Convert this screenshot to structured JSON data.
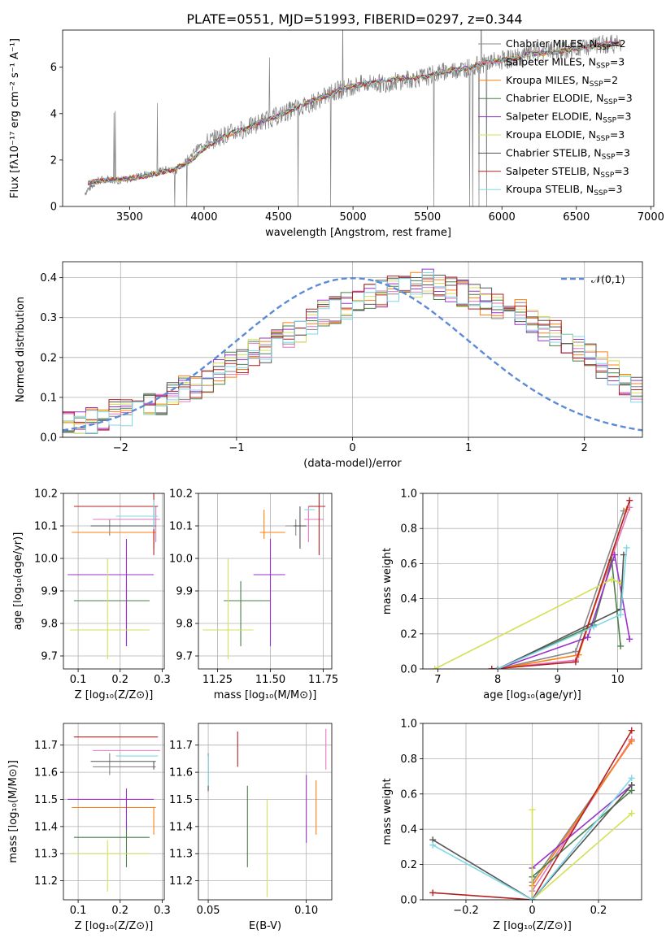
{
  "figure_title": "PLATE=0551, MJD=51993, FIBERID=0297, z=0.344",
  "series_colors": [
    "#888888",
    "#e377c2",
    "#ff7f0e",
    "#4b7f4b",
    "#9932cc",
    "#d4e157",
    "#555555",
    "#b22222",
    "#7fd8e6"
  ],
  "chart_data": [
    {
      "panel": "spectrum",
      "type": "line",
      "title": "PLATE=0551, MJD=51993, FIBERID=0297, z=0.344",
      "xlabel": "wavelength [Angstrom, rest frame]",
      "ylabel": "Flux [fλ10⁻¹⁷ erg cm⁻² s⁻¹ A⁻¹]",
      "xlim": [
        3050,
        7020
      ],
      "ylim": [
        0,
        7.6
      ],
      "xticks": [
        3500,
        4000,
        4500,
        5000,
        5500,
        6000,
        6500,
        7000
      ],
      "yticks": [
        0,
        2,
        4,
        6
      ],
      "grid": false,
      "legend_position": "upper right",
      "legend": [
        {
          "text": "Chabrier MILES, N",
          "sub": "SSP",
          "tail": "=2"
        },
        {
          "text": "Salpeter MILES, N",
          "sub": "SSP",
          "tail": "=3"
        },
        {
          "text": "Kroupa MILES, N",
          "sub": "SSP",
          "tail": "=2"
        },
        {
          "text": "Chabrier ELODIE, N",
          "sub": "SSP",
          "tail": "=3"
        },
        {
          "text": "Salpeter ELODIE, N",
          "sub": "SSP",
          "tail": "=3"
        },
        {
          "text": "Kroupa ELODIE, N",
          "sub": "SSP",
          "tail": "=3"
        },
        {
          "text": "Chabrier STELIB, N",
          "sub": "SSP",
          "tail": "=3"
        },
        {
          "text": "Salpeter STELIB, N",
          "sub": "SSP",
          "tail": "=3"
        },
        {
          "text": "Kroupa STELIB, N",
          "sub": "SSP",
          "tail": "=3"
        }
      ],
      "observed_flux": {
        "x": [
          3200,
          3280,
          3350,
          3450,
          3500,
          3550,
          3650,
          3750,
          3800,
          3850,
          3900,
          3950,
          4000,
          4100,
          4200,
          4300,
          4400,
          4500,
          4600,
          4700,
          4800,
          4900,
          5000,
          5100,
          5200,
          5300,
          5400,
          5500,
          5600,
          5700,
          5800,
          5900,
          6000,
          6100,
          6200,
          6300,
          6400,
          6500,
          6600,
          6700,
          6800
        ],
        "y": [
          0.6,
          1.1,
          1.2,
          1.1,
          1.2,
          1.3,
          1.4,
          1.6,
          1.5,
          1.8,
          2.1,
          2.5,
          2.7,
          3.0,
          3.2,
          3.4,
          3.7,
          3.9,
          4.2,
          4.4,
          4.7,
          5.0,
          5.2,
          5.3,
          5.3,
          5.4,
          5.5,
          5.6,
          5.8,
          5.9,
          6.0,
          6.2,
          6.3,
          6.4,
          6.6,
          6.7,
          6.7,
          6.8,
          6.9,
          7.0,
          7.0
        ]
      },
      "model_flux": {
        "x": [
          3200,
          3300,
          3400,
          3500,
          3600,
          3700,
          3800,
          3900,
          4000,
          4100,
          4200,
          4300,
          4400,
          4500,
          4600,
          4700,
          4800,
          4900,
          5000,
          5100,
          5200,
          5300,
          5400,
          5500,
          5600,
          5700,
          5800,
          5900,
          6000,
          6100,
          6200,
          6300,
          6400,
          6500,
          6600,
          6700,
          6800
        ],
        "y": [
          1.0,
          1.1,
          1.15,
          1.2,
          1.3,
          1.45,
          1.6,
          1.9,
          2.5,
          2.9,
          3.2,
          3.4,
          3.7,
          3.9,
          4.2,
          4.5,
          4.7,
          5.0,
          5.2,
          5.3,
          5.4,
          5.5,
          5.5,
          5.6,
          5.8,
          5.9,
          6.0,
          6.2,
          6.3,
          6.4,
          6.6,
          6.6,
          6.7,
          6.8,
          6.9,
          7.0,
          7.0
        ]
      }
    },
    {
      "panel": "residuals",
      "type": "histogram",
      "xlabel": "(data-model)/error",
      "ylabel": "Normed distribution",
      "xlim": [
        -2.5,
        2.5
      ],
      "ylim": [
        0,
        0.44
      ],
      "xticks": [
        -2,
        -1,
        0,
        1,
        2
      ],
      "yticks": [
        0.0,
        0.1,
        0.2,
        0.3,
        0.4
      ],
      "grid": true,
      "legend_position": "upper right",
      "reference_curve": {
        "name": "𝒩(0,1)",
        "mean": 0,
        "sigma": 1
      },
      "bin_width": 0.1,
      "base_histogram": [
        0.03,
        0.03,
        0.04,
        0.05,
        0.06,
        0.06,
        0.07,
        0.08,
        0.09,
        0.11,
        0.12,
        0.13,
        0.14,
        0.16,
        0.18,
        0.19,
        0.21,
        0.22,
        0.24,
        0.26,
        0.27,
        0.29,
        0.31,
        0.32,
        0.33,
        0.34,
        0.35,
        0.36,
        0.37,
        0.38,
        0.38,
        0.39,
        0.38,
        0.37,
        0.36,
        0.35,
        0.34,
        0.33,
        0.32,
        0.31,
        0.29,
        0.27,
        0.26,
        0.24,
        0.22,
        0.2,
        0.18,
        0.16,
        0.14,
        0.12
      ]
    },
    {
      "panel": "age_vs_Z",
      "type": "errorbar",
      "xlabel": "Z [log₁₀(Z/Z⊙)]",
      "ylabel": "age  [log₁₀(age/yr)]",
      "xlim": [
        0.065,
        0.305
      ],
      "ylim": [
        9.66,
        10.2
      ],
      "xticks": [
        0.1,
        0.2,
        0.3
      ],
      "yticks": [
        9.7,
        9.8,
        9.9,
        10.0,
        10.1,
        10.2
      ],
      "grid": true,
      "points": [
        {
          "x": 0.175,
          "y": 10.1,
          "xerr": [
            0.04,
            0.11
          ],
          "yerr": [
            0.03,
            0.02
          ]
        },
        {
          "x": 0.285,
          "y": 10.12,
          "xerr": [
            0.15,
            0.01
          ],
          "yerr": [
            0.07,
            0.04
          ]
        },
        {
          "x": 0.28,
          "y": 10.08,
          "xerr": [
            0.195,
            0.005
          ],
          "yerr": [
            0.02,
            0.07
          ]
        },
        {
          "x": 0.215,
          "y": 9.87,
          "xerr": [
            0.125,
            0.055
          ],
          "yerr": [
            0.14,
            0.06
          ]
        },
        {
          "x": 0.215,
          "y": 9.95,
          "xerr": [
            0.14,
            0.065
          ],
          "yerr": [
            0.22,
            0.11
          ]
        },
        {
          "x": 0.17,
          "y": 9.78,
          "xerr": [
            0.09,
            0.1
          ],
          "yerr": [
            0.09,
            0.22
          ]
        },
        {
          "x": 0.28,
          "y": 10.1,
          "xerr": [
            0.15,
            0.005
          ],
          "yerr": [
            0.07,
            0.06
          ]
        },
        {
          "x": 0.28,
          "y": 10.16,
          "xerr": [
            0.19,
            0.01
          ],
          "yerr": [
            0.15,
            0.04
          ]
        },
        {
          "x": 0.28,
          "y": 10.13,
          "xerr": [
            0.09,
            0.01
          ],
          "yerr": [
            0.04,
            0.05
          ]
        }
      ]
    },
    {
      "panel": "age_vs_mass",
      "type": "errorbar",
      "xlabel": "mass [log₁₀(M/M⊙)]",
      "ylabel": "",
      "xlim": [
        11.16,
        11.79
      ],
      "ylim": [
        9.66,
        10.2
      ],
      "xticks": [
        11.25,
        11.5,
        11.75
      ],
      "yticks": [
        9.7,
        9.8,
        9.9,
        10.0,
        10.1,
        10.2
      ],
      "grid": true,
      "points": [
        {
          "x": 11.62,
          "y": 10.1,
          "xerr": [
            0.05,
            0.03
          ],
          "yerr": [
            0.03,
            0.02
          ]
        },
        {
          "x": 11.68,
          "y": 10.12,
          "xerr": [
            0.02,
            0.07
          ],
          "yerr": [
            0.07,
            0.04
          ]
        },
        {
          "x": 11.47,
          "y": 10.08,
          "xerr": [
            0.02,
            0.1
          ],
          "yerr": [
            0.02,
            0.07
          ]
        },
        {
          "x": 11.36,
          "y": 9.87,
          "xerr": [
            0.08,
            0.14
          ],
          "yerr": [
            0.14,
            0.06
          ]
        },
        {
          "x": 11.5,
          "y": 9.95,
          "xerr": [
            0.08,
            0.07
          ],
          "yerr": [
            0.22,
            0.11
          ]
        },
        {
          "x": 11.3,
          "y": 9.78,
          "xerr": [
            0.12,
            0.12
          ],
          "yerr": [
            0.09,
            0.22
          ]
        },
        {
          "x": 11.64,
          "y": 10.1,
          "xerr": [
            0.03,
            0.03
          ],
          "yerr": [
            0.07,
            0.06
          ]
        },
        {
          "x": 11.73,
          "y": 10.16,
          "xerr": [
            0.05,
            0.03
          ],
          "yerr": [
            0.15,
            0.04
          ]
        },
        {
          "x": 11.66,
          "y": 10.15,
          "xerr": [
            0.0,
            0.05
          ],
          "yerr": [
            0.0,
            0.0
          ]
        }
      ]
    },
    {
      "panel": "weight_vs_age",
      "type": "line",
      "xlabel": "age  [log₁₀(age/yr)]",
      "ylabel": "mass weight",
      "xlim": [
        6.75,
        10.4
      ],
      "ylim": [
        0,
        1.0
      ],
      "xticks": [
        7,
        8,
        9,
        10
      ],
      "yticks": [
        0.0,
        0.2,
        0.4,
        0.6,
        0.8,
        1.0
      ],
      "grid": true,
      "series": [
        {
          "x": [
            8.0,
            9.3,
            10.1
          ],
          "y": [
            0.0,
            0.1,
            0.9
          ]
        },
        {
          "x": [
            7.9,
            9.3,
            10.2
          ],
          "y": [
            0.0,
            0.05,
            0.92
          ]
        },
        {
          "x": [
            8.0,
            9.35,
            10.15
          ],
          "y": [
            0.0,
            0.08,
            0.91
          ]
        },
        {
          "x": [
            8.0,
            9.6,
            9.9,
            10.05
          ],
          "y": [
            0.0,
            0.25,
            0.62,
            0.13
          ]
        },
        {
          "x": [
            8.0,
            9.5,
            9.95,
            10.2
          ],
          "y": [
            0.0,
            0.18,
            0.65,
            0.17
          ]
        },
        {
          "x": [
            6.95,
            9.9,
            10.05
          ],
          "y": [
            0.0,
            0.51,
            0.49
          ]
        },
        {
          "x": [
            8.0,
            10.05,
            10.1
          ],
          "y": [
            0.0,
            0.34,
            0.65
          ]
        },
        {
          "x": [
            7.9,
            9.3,
            10.2
          ],
          "y": [
            0.0,
            0.04,
            0.96
          ]
        },
        {
          "x": [
            8.0,
            9.6,
            10.05,
            10.15
          ],
          "y": [
            0.0,
            0.24,
            0.31,
            0.69
          ]
        }
      ]
    },
    {
      "panel": "mass_vs_Z",
      "type": "errorbar",
      "xlabel": "Z [log₁₀(Z/Z⊙)]",
      "ylabel": "mass [log₁₀(M/M⊙)]",
      "xlim": [
        0.065,
        0.305
      ],
      "ylim": [
        11.13,
        11.78
      ],
      "xticks": [
        0.1,
        0.2,
        0.3
      ],
      "yticks": [
        11.2,
        11.3,
        11.4,
        11.5,
        11.6,
        11.7
      ],
      "grid": true,
      "points": [
        {
          "x": 0.175,
          "y": 11.62,
          "xerr": [
            0.04,
            0.11
          ],
          "yerr": [
            0.03,
            0.05
          ]
        },
        {
          "x": 0.285,
          "y": 11.68,
          "xerr": [
            0.15,
            0.01
          ],
          "yerr": [
            0.0,
            0.0
          ]
        },
        {
          "x": 0.28,
          "y": 11.47,
          "xerr": [
            0.195,
            0.005
          ],
          "yerr": [
            0.1,
            0.0
          ]
        },
        {
          "x": 0.215,
          "y": 11.36,
          "xerr": [
            0.125,
            0.055
          ],
          "yerr": [
            0.11,
            0.06
          ]
        },
        {
          "x": 0.215,
          "y": 11.5,
          "xerr": [
            0.14,
            0.065
          ],
          "yerr": [
            0.11,
            0.04
          ]
        },
        {
          "x": 0.17,
          "y": 11.3,
          "xerr": [
            0.09,
            0.1
          ],
          "yerr": [
            0.14,
            0.05
          ]
        },
        {
          "x": 0.28,
          "y": 11.64,
          "xerr": [
            0.15,
            0.005
          ],
          "yerr": [
            0.03,
            0.0
          ]
        },
        {
          "x": 0.28,
          "y": 11.73,
          "xerr": [
            0.19,
            0.01
          ],
          "yerr": [
            0.0,
            0.0
          ]
        },
        {
          "x": 0.28,
          "y": 11.66,
          "xerr": [
            0.09,
            0.01
          ],
          "yerr": [
            0.0,
            0.0
          ]
        }
      ]
    },
    {
      "panel": "mass_vs_ebv",
      "type": "errorbar",
      "xlabel": "E(B-V)",
      "ylabel": "",
      "xlim": [
        0.045,
        0.113
      ],
      "ylim": [
        11.13,
        11.78
      ],
      "xticks": [
        0.05,
        0.1
      ],
      "yticks": [
        11.2,
        11.3,
        11.4,
        11.5,
        11.6,
        11.7
      ],
      "grid": true,
      "points": [
        {
          "x": 0.05,
          "y": 11.6,
          "xerr": [
            0,
            0
          ],
          "yerr": [
            0.06,
            0.07
          ]
        },
        {
          "x": 0.11,
          "y": 11.66,
          "xerr": [
            0,
            0
          ],
          "yerr": [
            0.05,
            0.1
          ]
        },
        {
          "x": 0.105,
          "y": 11.47,
          "xerr": [
            0,
            0
          ],
          "yerr": [
            0.1,
            0.1
          ]
        },
        {
          "x": 0.07,
          "y": 11.4,
          "xerr": [
            0,
            0
          ],
          "yerr": [
            0.15,
            0.15
          ]
        },
        {
          "x": 0.1,
          "y": 11.47,
          "xerr": [
            0,
            0
          ],
          "yerr": [
            0.13,
            0.12
          ]
        },
        {
          "x": 0.08,
          "y": 11.32,
          "xerr": [
            0,
            0
          ],
          "yerr": [
            0.18,
            0.18
          ]
        },
        {
          "x": 0.05,
          "y": 11.6,
          "xerr": [
            0,
            0
          ],
          "yerr": [
            0.07,
            0.06
          ]
        },
        {
          "x": 0.065,
          "y": 11.68,
          "xerr": [
            0,
            0
          ],
          "yerr": [
            0.06,
            0.07
          ]
        },
        {
          "x": 0.05,
          "y": 11.61,
          "xerr": [
            0,
            0
          ],
          "yerr": [
            0.06,
            0.05
          ]
        }
      ]
    },
    {
      "panel": "weight_vs_Z",
      "type": "line",
      "xlabel": "Z [log₁₀(Z/Z⊙)]",
      "ylabel": "mass weight",
      "xlim": [
        -0.33,
        0.33
      ],
      "ylim": [
        0,
        1.0
      ],
      "xticks": [
        -0.2,
        0.0,
        0.2
      ],
      "yticks": [
        0.0,
        0.2,
        0.4,
        0.6,
        0.8,
        1.0
      ],
      "grid": true,
      "series": [
        {
          "x": [
            0.0,
            0.0,
            0.3
          ],
          "y": [
            0.0,
            0.1,
            0.9
          ]
        },
        {
          "x": [
            0.0,
            0.0,
            0.3
          ],
          "y": [
            0.0,
            0.05,
            0.91
          ]
        },
        {
          "x": [
            0.0,
            0.0,
            0.3
          ],
          "y": [
            0.0,
            0.08,
            0.9
          ]
        },
        {
          "x": [
            0.0,
            0.0,
            0.3
          ],
          "y": [
            0.0,
            0.13,
            0.62
          ]
        },
        {
          "x": [
            0.0,
            0.0,
            0.3
          ],
          "y": [
            0.0,
            0.18,
            0.65
          ]
        },
        {
          "x": [
            0.0,
            0.0,
            0.3
          ],
          "y": [
            0.51,
            0.0,
            0.49
          ]
        },
        {
          "x": [
            -0.3,
            0.0,
            0.3
          ],
          "y": [
            0.34,
            0.0,
            0.65
          ]
        },
        {
          "x": [
            -0.3,
            0.0,
            0.3
          ],
          "y": [
            0.04,
            0.0,
            0.96
          ]
        },
        {
          "x": [
            -0.3,
            0.0,
            0.3
          ],
          "y": [
            0.31,
            0.0,
            0.69
          ]
        }
      ]
    }
  ]
}
